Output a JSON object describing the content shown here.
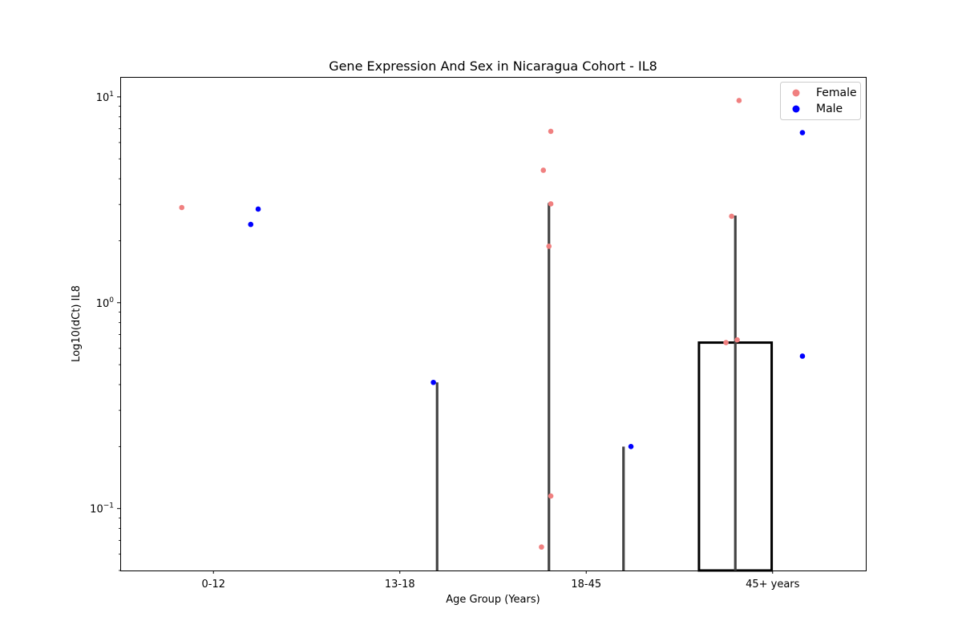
{
  "chart_data": {
    "type": "bar",
    "title": "Gene Expression And Sex in Nicaragua Cohort - IL8",
    "xlabel": "Age Group (Years)",
    "ylabel": "Log10(dCt) IL8",
    "y_scale": "log",
    "ylim": [
      0.05,
      12.5
    ],
    "y_ticks": [
      {
        "value": 0.1,
        "base": "10",
        "exp": "−1"
      },
      {
        "value": 1,
        "base": "10",
        "exp": "0"
      },
      {
        "value": 10,
        "base": "10",
        "exp": "1"
      }
    ],
    "categories": [
      "0-12",
      "13-18",
      "18-45",
      "45+ years"
    ],
    "legend": {
      "position": "top-right",
      "entries": [
        "Female",
        "Male"
      ]
    },
    "colors": {
      "Female": "#f08080",
      "Male": "#0000ff",
      "bar_edge": "#000000",
      "error_bar": "#444444"
    },
    "bars": [
      {
        "category": "45+ years",
        "hue": "Female",
        "value": 0.64,
        "error_upper": 2.65
      }
    ],
    "error_bars": [
      {
        "category": "13-18",
        "hue": "Male",
        "upper": 0.41
      },
      {
        "category": "18-45",
        "hue": "Female",
        "upper": 3.05
      },
      {
        "category": "18-45",
        "hue": "Male",
        "upper": 0.2
      },
      {
        "category": "45+ years",
        "hue": "Female",
        "upper": 2.65
      }
    ],
    "series": [
      {
        "name": "Female",
        "points": [
          {
            "category": "0-12",
            "offset": -0.17,
            "y": 2.9
          },
          {
            "category": "18-45",
            "offset": -0.24,
            "y": 0.065
          },
          {
            "category": "18-45",
            "offset": -0.23,
            "y": 4.4
          },
          {
            "category": "18-45",
            "offset": -0.19,
            "y": 6.8
          },
          {
            "category": "18-45",
            "offset": -0.2,
            "y": 1.88
          },
          {
            "category": "18-45",
            "offset": -0.19,
            "y": 3.02
          },
          {
            "category": "18-45",
            "offset": -0.19,
            "y": 0.115
          },
          {
            "category": "45+ years",
            "offset": -0.25,
            "y": 0.64
          },
          {
            "category": "45+ years",
            "offset": -0.22,
            "y": 2.63
          },
          {
            "category": "45+ years",
            "offset": -0.19,
            "y": 0.66
          },
          {
            "category": "45+ years",
            "offset": -0.18,
            "y": 9.6
          }
        ]
      },
      {
        "name": "Male",
        "points": [
          {
            "category": "0-12",
            "offset": 0.2,
            "y": 2.4
          },
          {
            "category": "0-12",
            "offset": 0.24,
            "y": 2.85
          },
          {
            "category": "13-18",
            "offset": 0.18,
            "y": 0.41
          },
          {
            "category": "18-45",
            "offset": 0.24,
            "y": 0.2
          },
          {
            "category": "45+ years",
            "offset": 0.16,
            "y": 6.7
          },
          {
            "category": "45+ years",
            "offset": 0.16,
            "y": 0.55
          }
        ]
      }
    ]
  }
}
